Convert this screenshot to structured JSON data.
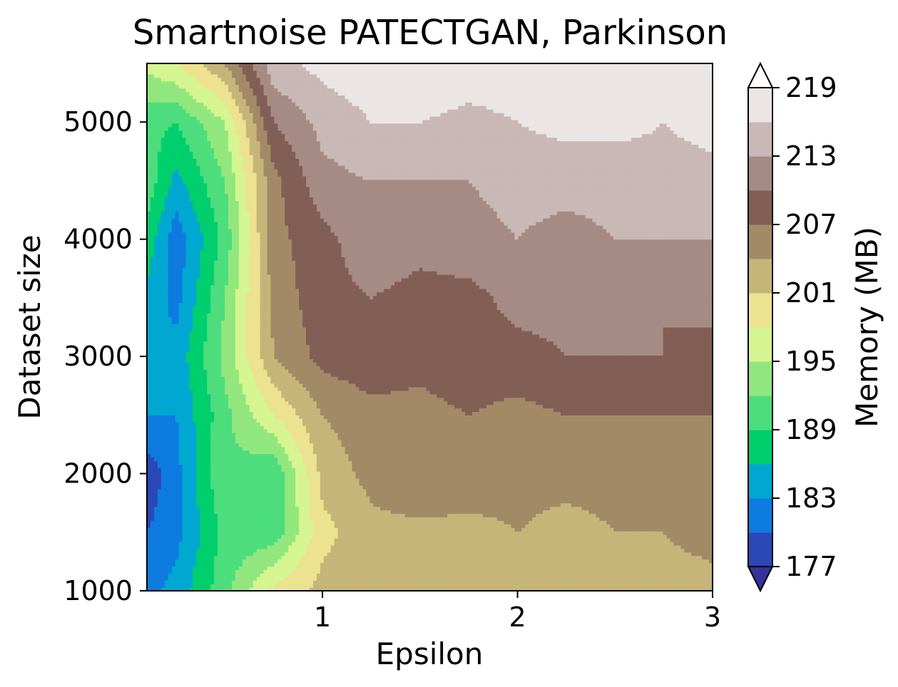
{
  "chart_data": {
    "type": "heatmap",
    "subtype": "filled-contour",
    "title": "Smartnoise PATECTGAN, Parkinson",
    "xlabel": "Epsilon",
    "ylabel": "Dataset size",
    "xlim": [
      0.1,
      3
    ],
    "ylim": [
      1000,
      5500
    ],
    "x_ticks": [
      1,
      2,
      3
    ],
    "y_ticks": [
      1000,
      2000,
      3000,
      4000,
      5000
    ],
    "colorbar": {
      "label": "Memory (MB)",
      "ticks": [
        177,
        183,
        189,
        195,
        201,
        207,
        213,
        219
      ],
      "levels": [
        177,
        180,
        183,
        186,
        189,
        192,
        195,
        198,
        201,
        204,
        207,
        210,
        213,
        216,
        219
      ],
      "extend": "both",
      "colormap": "terrain",
      "band_colors": [
        "#2a49b6",
        "#0e7be0",
        "#00a7d0",
        "#00cf6d",
        "#4ddd7c",
        "#91e77d",
        "#d5f590",
        "#ece28f",
        "#c6b578",
        "#a28a67",
        "#815f55",
        "#a68b84",
        "#c9b8b5",
        "#ebe6e5"
      ],
      "under_color": "#333399",
      "over_color": "#ffffff"
    },
    "x": [
      0.1,
      0.25,
      0.5,
      0.75,
      1.0,
      1.25,
      1.5,
      1.75,
      2.0,
      2.25,
      2.5,
      2.75,
      3.0
    ],
    "y": [
      1000,
      1500,
      2000,
      2500,
      3000,
      3500,
      4000,
      4500,
      5000,
      5500
    ],
    "z": [
      [
        182,
        184,
        191,
        199,
        202,
        204,
        202,
        203,
        203,
        204,
        203,
        203,
        203
      ],
      [
        180,
        182,
        190,
        190,
        200,
        203,
        203,
        203,
        204,
        203,
        204,
        204,
        205
      ],
      [
        178,
        182,
        192,
        189,
        202,
        205,
        207,
        206,
        205,
        205,
        205,
        206,
        206
      ],
      [
        183,
        183,
        191,
        198,
        204,
        206,
        206,
        207,
        206,
        207,
        207,
        207,
        207
      ],
      [
        183,
        184,
        193,
        204,
        208,
        209,
        208,
        209,
        209,
        210,
        210,
        210,
        209
      ],
      [
        185,
        182,
        192,
        205,
        209,
        210,
        209,
        209,
        211,
        211,
        211,
        210,
        211
      ],
      [
        188,
        181,
        190,
        206,
        209,
        212,
        211,
        212,
        213,
        212,
        213,
        213,
        213
      ],
      [
        191,
        185,
        192,
        206,
        212,
        213,
        213,
        213,
        214,
        214,
        214,
        215,
        215
      ],
      [
        190,
        189,
        195,
        210,
        214,
        216,
        216,
        215,
        216,
        217,
        217,
        216,
        217
      ],
      [
        196,
        198,
        204,
        215,
        217,
        218,
        219,
        218,
        218,
        218,
        219,
        219,
        219
      ]
    ]
  }
}
